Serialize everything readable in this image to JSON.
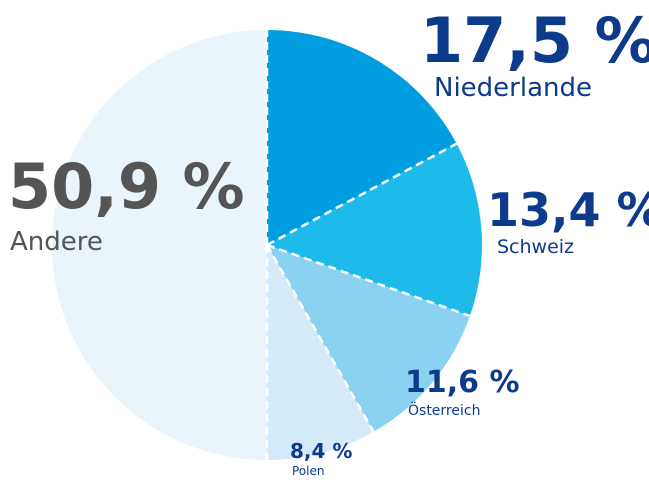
{
  "chart_data": {
    "type": "pie",
    "categories": [
      "Niederlande",
      "Schweiz",
      "Österreich",
      "Polen",
      "Andere"
    ],
    "values": [
      17.5,
      13.4,
      11.6,
      8.4,
      50.9
    ],
    "value_labels": [
      "17,5 %",
      "13,4 %",
      "11,6 %",
      "8,4 %",
      "50,9 %"
    ],
    "colors": [
      "#009ee0",
      "#1ebbea",
      "#8bd1f1",
      "#d5eaf8",
      "#e9f4fb"
    ]
  }
}
